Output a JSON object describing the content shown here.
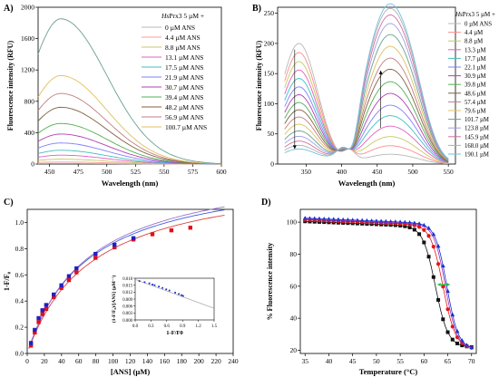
{
  "chart_data": [
    {
      "panel": "A)",
      "type": "line",
      "xlabel": "Wavelength (nm)",
      "ylabel": "Fluorescence intensity (RFU)",
      "xlim": [
        440,
        600
      ],
      "ylim": [
        0,
        2000
      ],
      "xticks": [
        450,
        475,
        500,
        525,
        550,
        575,
        600
      ],
      "yticks": [
        0,
        400,
        800,
        1200,
        1600,
        2000
      ],
      "legend_title_italic": "Hs",
      "legend_title_rest": "Prx3 5 µM +",
      "series": [
        {
          "name": "0 µM ANS",
          "color": "#b8b8b8",
          "peak": 8
        },
        {
          "name": "4.4 µM ANS",
          "color": "#ff9a9a",
          "peak": 25
        },
        {
          "name": "8.8 µM ANS",
          "color": "#c8c864",
          "peak": 60
        },
        {
          "name": "13.1 µM ANS",
          "color": "#e060c0",
          "peak": 110
        },
        {
          "name": "17.5 µM ANS",
          "color": "#40c0c0",
          "peak": 170
        },
        {
          "name": "21.9 µM ANS",
          "color": "#8080ff",
          "peak": 260
        },
        {
          "name": "30.7 µM ANS",
          "color": "#b040b0",
          "peak": 370
        },
        {
          "name": "39.4 µM ANS",
          "color": "#50b050",
          "peak": 500
        },
        {
          "name": "48.2 µM ANS",
          "color": "#806040",
          "peak": 700
        },
        {
          "name": "56.9 µM ANS",
          "color": "#c08080",
          "peak": 870
        },
        {
          "name": "100.7 µM ANS",
          "color": "#e0c060",
          "peak": 1090
        },
        {
          "name": "",
          "color": "#6aa090",
          "peak": 1790
        }
      ]
    },
    {
      "panel": "B)",
      "type": "line",
      "xlabel": "Wavelength (nm)",
      "ylabel": "Fluorescence intensity (RFU)",
      "xlim": [
        310,
        560
      ],
      "ylim": [
        0,
        260
      ],
      "xticks": [
        350,
        400,
        450,
        500,
        550
      ],
      "yticks": [
        0,
        50,
        100,
        150,
        200,
        250
      ],
      "legend_title_italic": "Hs",
      "legend_title_rest": "Prx3 5 µM +",
      "series": [
        {
          "name": "0 µM ANS",
          "color": "#b8b8b8",
          "trp": 200,
          "ans": 15
        },
        {
          "name": "4.4 µM",
          "color": "#ff8a8a",
          "trp": 185,
          "ans": 28
        },
        {
          "name": "8.8 µM",
          "color": "#c8c864",
          "trp": 170,
          "ans": 42
        },
        {
          "name": "13.3 µM",
          "color": "#e060c0",
          "trp": 156,
          "ans": 58
        },
        {
          "name": "17.7 µM",
          "color": "#40c0c0",
          "trp": 142,
          "ans": 74
        },
        {
          "name": "22.1 µM",
          "color": "#8080ff",
          "trp": 128,
          "ans": 90
        },
        {
          "name": "30.9 µM",
          "color": "#b040b0",
          "trp": 115,
          "ans": 108
        },
        {
          "name": "39.8 µM",
          "color": "#50b050",
          "trp": 102,
          "ans": 126
        },
        {
          "name": "48.6 µM",
          "color": "#806040",
          "trp": 90,
          "ans": 145
        },
        {
          "name": "57.4 µM",
          "color": "#c08080",
          "trp": 78,
          "ans": 162
        },
        {
          "name": "79.6 µM",
          "color": "#e0c060",
          "trp": 66,
          "ans": 180
        },
        {
          "name": "101.7 µM",
          "color": "#6aa090",
          "trp": 55,
          "ans": 198
        },
        {
          "name": "123.8 µM",
          "color": "#a0a0e0",
          "trp": 46,
          "ans": 215
        },
        {
          "name": "145.9 µM",
          "color": "#d070a0",
          "trp": 38,
          "ans": 228
        },
        {
          "name": "168.0 µM",
          "color": "#b0b0b0",
          "trp": 31,
          "ans": 238
        },
        {
          "name": "190.1 µM",
          "color": "#70c0e0",
          "trp": 25,
          "ans": 245
        }
      ]
    },
    {
      "panel": "C)",
      "type": "scatter",
      "xlabel": "[ANS] (µM)",
      "ylabel": "1-F/F₀",
      "xlim": [
        0,
        240
      ],
      "ylim": [
        0,
        1.1
      ],
      "xticks": [
        0,
        20,
        40,
        60,
        80,
        100,
        120,
        140,
        160,
        180,
        200,
        220,
        240
      ],
      "yticks": [
        0.0,
        0.2,
        0.4,
        0.6,
        0.8,
        1.0
      ],
      "series": [
        {
          "name": "",
          "color": "#e0101a",
          "marker": "square",
          "x": [
            4.4,
            8.8,
            13.3,
            17.7,
            22.1,
            30.9,
            39.8,
            48.6,
            57.4,
            79.6,
            101.7,
            123.8,
            145.9,
            168.0,
            190.1
          ],
          "y": [
            0.06,
            0.16,
            0.24,
            0.3,
            0.34,
            0.43,
            0.5,
            0.56,
            0.62,
            0.73,
            0.81,
            0.87,
            0.91,
            0.94,
            0.96
          ]
        },
        {
          "name": "",
          "color": "#2020c0",
          "marker": "square",
          "x": [
            4.4,
            8.8,
            13.3,
            17.7,
            22.1,
            30.9,
            39.8,
            48.6,
            57.4,
            79.6,
            101.7,
            123.8
          ],
          "y": [
            0.08,
            0.18,
            0.27,
            0.33,
            0.37,
            0.45,
            0.52,
            0.59,
            0.65,
            0.76,
            0.83,
            0.88
          ]
        }
      ],
      "fits": [
        {
          "color": "#e04040",
          "bmax": 1.4,
          "kd": 75
        },
        {
          "color": "#4060e0",
          "bmax": 1.43,
          "kd": 70
        },
        {
          "color": "#9a70c8",
          "bmax": 1.47,
          "kd": 72
        }
      ],
      "inset": {
        "xlabel": "1-F/F0",
        "ylabel": "(1-F/F₀)/[ANS] (µM⁻¹)",
        "xlim": [
          0,
          1.5
        ],
        "ylim": [
          0,
          0.018
        ],
        "xticks": [
          0.0,
          0.3,
          0.6,
          0.9,
          1.2,
          1.5
        ],
        "yticks": [
          0.0,
          0.003,
          0.006,
          0.009,
          0.012,
          0.015,
          0.018
        ],
        "points": {
          "color": "#2030c0",
          "x": [
            0.08,
            0.18,
            0.27,
            0.33,
            0.37,
            0.45,
            0.52,
            0.59,
            0.65,
            0.76,
            0.83,
            0.88,
            0.91
          ],
          "y": [
            0.0168,
            0.0163,
            0.0158,
            0.0153,
            0.015,
            0.0144,
            0.0138,
            0.0132,
            0.0127,
            0.0118,
            0.0112,
            0.0107,
            0.0104
          ]
        },
        "fit": {
          "color": "#a0a0a0",
          "x": [
            0.0,
            1.5
          ],
          "y": [
            0.0175,
            0.005
          ]
        }
      }
    },
    {
      "panel": "D)",
      "type": "line",
      "xlabel": "Temperature (°C)",
      "ylabel": "% Fluorescence intensity",
      "xlim": [
        34,
        71
      ],
      "ylim": [
        18,
        108
      ],
      "xticks": [
        35,
        40,
        45,
        50,
        55,
        60,
        65,
        70
      ],
      "yticks": [
        20,
        40,
        60,
        80,
        100
      ],
      "series": [
        {
          "name": "",
          "color": "#111111",
          "marker": "square",
          "tm": 62.4,
          "top": 100.5,
          "bottom": 26,
          "slope": 1.3
        },
        {
          "name": "",
          "color": "#e01818",
          "marker": "circle",
          "tm": 64.0,
          "top": 101.5,
          "bottom": 25,
          "slope": 1.3
        },
        {
          "name": "",
          "color": "#1030d0",
          "marker": "triangle",
          "tm": 64.8,
          "top": 102.5,
          "bottom": 25,
          "slope": 1.2
        },
        {
          "name": "",
          "color": "#a030b0",
          "marker": "line",
          "tm": 64.5,
          "top": 102,
          "bottom": 25,
          "slope": 1.2
        }
      ],
      "arrow_color": "#20c040"
    }
  ]
}
